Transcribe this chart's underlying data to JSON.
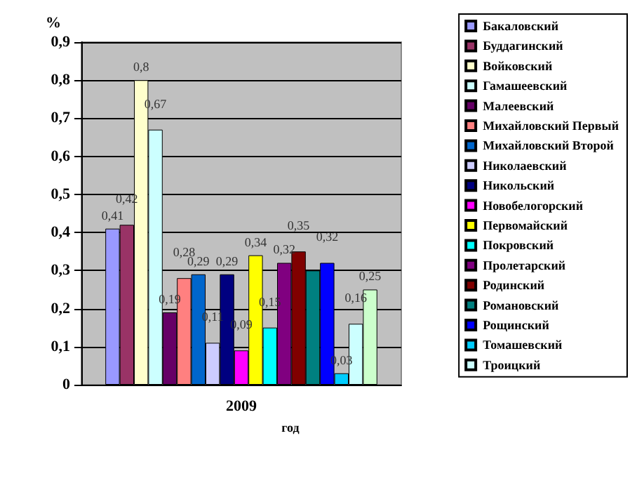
{
  "chart_data": {
    "type": "bar",
    "ylabel": "%",
    "xlabel": "год",
    "categories": [
      "2009"
    ],
    "ylim": [
      0,
      0.9
    ],
    "yticks": [
      {
        "value": 0,
        "label": "0"
      },
      {
        "value": 0.1,
        "label": "0,1"
      },
      {
        "value": 0.2,
        "label": "0,2"
      },
      {
        "value": 0.3,
        "label": "0,3"
      },
      {
        "value": 0.4,
        "label": "0,4"
      },
      {
        "value": 0.5,
        "label": "0,5"
      },
      {
        "value": 0.6,
        "label": "0,6"
      },
      {
        "value": 0.7,
        "label": "0,7"
      },
      {
        "value": 0.8,
        "label": "0,8"
      },
      {
        "value": 0.9,
        "label": "0,9"
      }
    ],
    "grid": "y",
    "legend": "right",
    "series": [
      {
        "name": "Бакаловский",
        "color": "#9999ff",
        "values": [
          0.41
        ],
        "value_labels": [
          "0,41"
        ]
      },
      {
        "name": "Буддагинский",
        "color": "#993366",
        "values": [
          0.42
        ],
        "value_labels": [
          "0,42"
        ]
      },
      {
        "name": "Войковский",
        "color": "#ffffcc",
        "values": [
          0.8
        ],
        "value_labels": [
          "0,8"
        ]
      },
      {
        "name": "Гамашеевский",
        "color": "#ccffff",
        "values": [
          0.67
        ],
        "value_labels": [
          "0,67"
        ]
      },
      {
        "name": "Малеевский",
        "color": "#660066",
        "values": [
          0.19
        ],
        "value_labels": [
          "0,19"
        ]
      },
      {
        "name": "Михайловский Первый",
        "color": "#ff8080",
        "values": [
          0.28
        ],
        "value_labels": [
          "0,28"
        ]
      },
      {
        "name": "Михайловский Второй",
        "color": "#0066cc",
        "values": [
          0.29
        ],
        "value_labels": [
          "0,29"
        ]
      },
      {
        "name": "Николаевский",
        "color": "#ccccff",
        "values": [
          0.11
        ],
        "value_labels": [
          "0,11"
        ]
      },
      {
        "name": "Никольский",
        "color": "#000080",
        "values": [
          0.29
        ],
        "value_labels": [
          "0,29"
        ]
      },
      {
        "name": "Новобелогорский",
        "color": "#ff00ff",
        "values": [
          0.09
        ],
        "value_labels": [
          "0,09"
        ]
      },
      {
        "name": "Первомайский",
        "color": "#ffff00",
        "values": [
          0.34
        ],
        "value_labels": [
          "0,34"
        ]
      },
      {
        "name": "Покровский",
        "color": "#00ffff",
        "values": [
          0.15
        ],
        "value_labels": [
          "0,15"
        ]
      },
      {
        "name": "Пролетарский",
        "color": "#800080",
        "values": [
          0.32
        ],
        "value_labels": [
          "0,32"
        ]
      },
      {
        "name": "Родинский",
        "color": "#800000",
        "values": [
          0.35
        ],
        "value_labels": [
          "0,35"
        ]
      },
      {
        "name": "Романовский",
        "color": "#008080",
        "values": [
          0.3
        ],
        "value_labels": [
          null
        ]
      },
      {
        "name": "Рощинский",
        "color": "#0000ff",
        "values": [
          0.32
        ],
        "value_labels": [
          "0,32"
        ]
      },
      {
        "name": "Томашевский",
        "color": "#00ccff",
        "values": [
          0.03
        ],
        "value_labels": [
          "0,03"
        ]
      },
      {
        "name": "Троицкий",
        "color": "#ccffff",
        "values": [
          0.16
        ],
        "value_labels": [
          "0,16"
        ]
      },
      {
        "color": "#ccffcc",
        "values": [
          0.25
        ],
        "value_labels": [
          "0,25"
        ]
      }
    ]
  }
}
